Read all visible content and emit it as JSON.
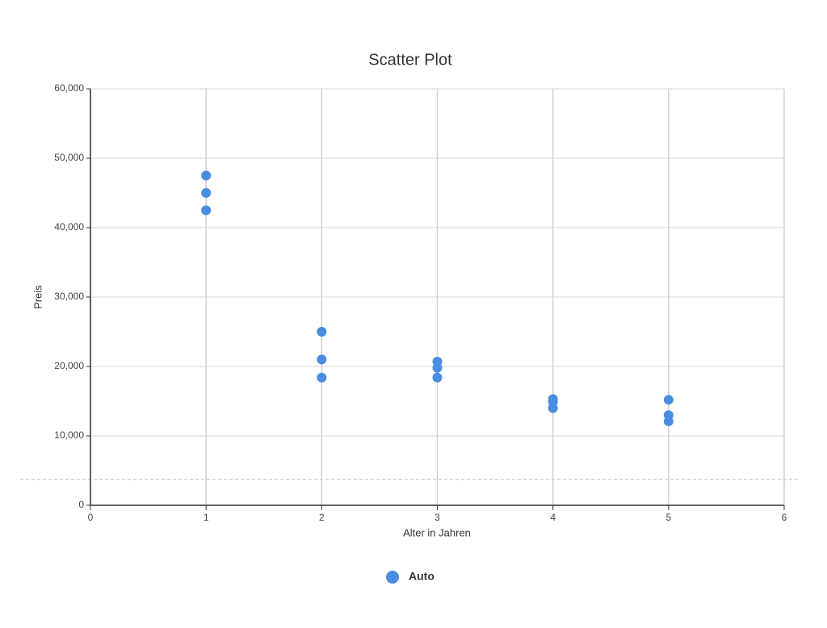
{
  "chart_data": {
    "type": "scatter",
    "title": "Scatter Plot",
    "x_label": "Alter in Jahren",
    "y_label": "Preis",
    "series": [
      {
        "name": "Auto",
        "color": "#4a8de0",
        "x": [
          1,
          1,
          1,
          2,
          2,
          2,
          3,
          3,
          3,
          4,
          4,
          4,
          5,
          5,
          5
        ],
        "values": [
          47500,
          45000,
          42500,
          25000,
          21000,
          18400,
          20700,
          19800,
          18400,
          15300,
          14900,
          14000,
          15200,
          13000,
          12100
        ]
      }
    ],
    "xlim": [
      0,
      6
    ],
    "xticks": [
      0,
      1,
      2,
      3,
      4,
      5,
      6
    ],
    "ylim": [
      0,
      60000
    ],
    "yticks": [
      0,
      {
        "value": 10000,
        "label": "10,000"
      },
      {
        "value": 20000,
        "label": "20,000"
      },
      {
        "value": 30000,
        "label": "30,000"
      },
      {
        "value": 40000,
        "label": "40,000"
      },
      {
        "value": 50000,
        "label": "50,000"
      },
      {
        "value": 60000,
        "label": "60,000"
      }
    ],
    "grid": true,
    "legend": "bottom"
  }
}
